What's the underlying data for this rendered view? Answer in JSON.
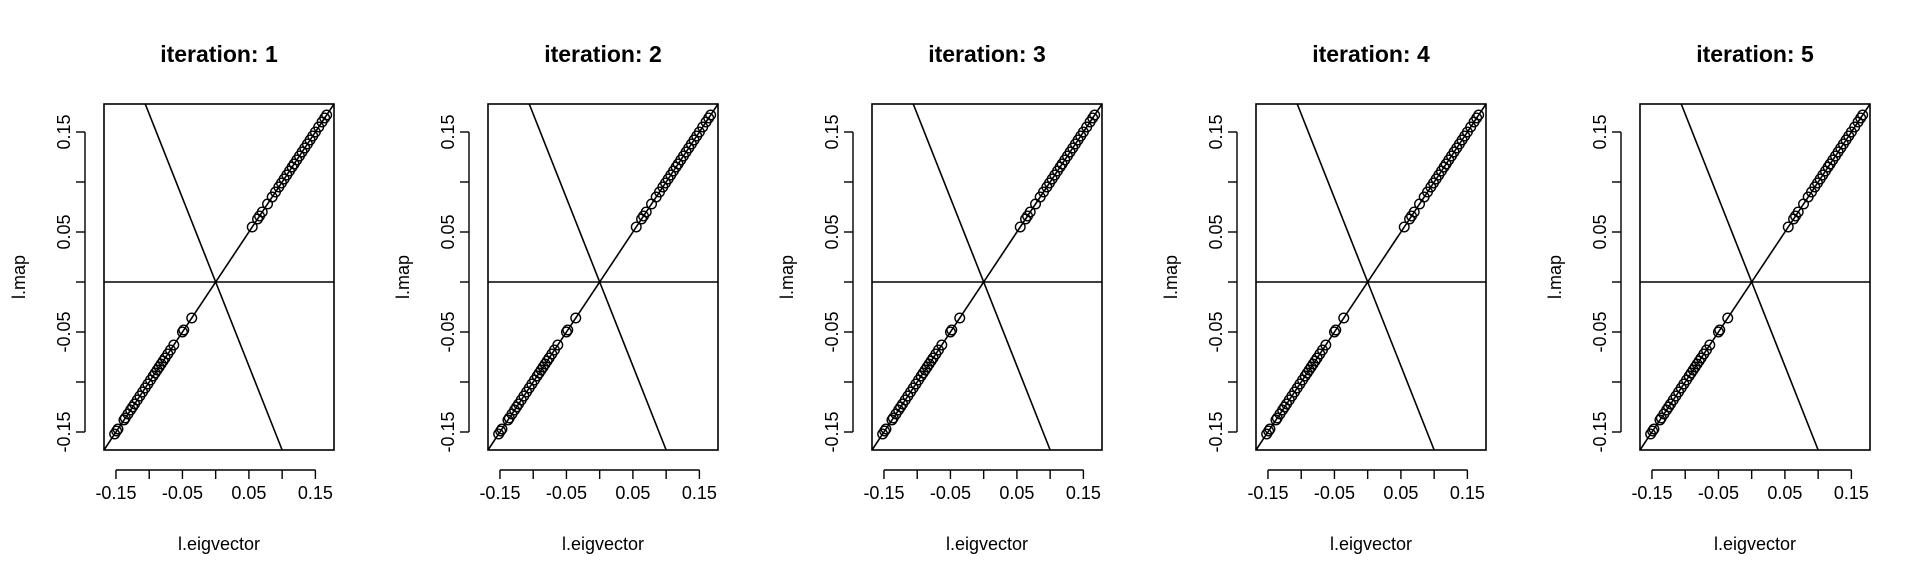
{
  "chart_data": [
    {
      "type": "scatter",
      "title": "iteration: 1",
      "xlabel": "l.eigvector",
      "ylabel": "l.map",
      "xlim": [
        -0.168,
        0.178
      ],
      "ylim": [
        -0.168,
        0.178
      ],
      "x_ticks": [
        -0.15,
        -0.1,
        -0.05,
        0,
        0.05,
        0.1,
        0.15
      ],
      "x_tick_labels": [
        "-0.15",
        "-0.05",
        "0.05",
        "0.15"
      ],
      "y_ticks": [
        -0.15,
        -0.1,
        -0.05,
        0,
        0.05,
        0.1,
        0.15
      ],
      "y_tick_labels": [
        "-0.15",
        "-0.05",
        "0.05",
        "0.15"
      ],
      "grid": false,
      "reference_lines": [
        {
          "kind": "abline",
          "intercept": 0,
          "slope": 1
        },
        {
          "kind": "abline",
          "intercept": 0,
          "slope": -1.68
        },
        {
          "kind": "hline",
          "y": 0
        }
      ],
      "points": {
        "x": [
          -0.152,
          -0.149,
          -0.147,
          -0.138,
          -0.136,
          -0.132,
          -0.128,
          -0.125,
          -0.122,
          -0.118,
          -0.114,
          -0.11,
          -0.106,
          -0.102,
          -0.098,
          -0.094,
          -0.091,
          -0.088,
          -0.085,
          -0.082,
          -0.079,
          -0.076,
          -0.072,
          -0.068,
          -0.063,
          -0.05,
          -0.048,
          -0.036,
          0.055,
          0.063,
          0.066,
          0.07,
          0.078,
          0.085,
          0.09,
          0.095,
          0.099,
          0.103,
          0.107,
          0.111,
          0.115,
          0.118,
          0.122,
          0.126,
          0.13,
          0.134,
          0.138,
          0.142,
          0.146,
          0.15,
          0.155,
          0.16,
          0.164,
          0.167
        ],
        "y": [
          -0.152,
          -0.149,
          -0.147,
          -0.138,
          -0.136,
          -0.132,
          -0.128,
          -0.125,
          -0.122,
          -0.118,
          -0.114,
          -0.11,
          -0.106,
          -0.102,
          -0.098,
          -0.094,
          -0.091,
          -0.088,
          -0.085,
          -0.082,
          -0.079,
          -0.076,
          -0.072,
          -0.068,
          -0.063,
          -0.05,
          -0.048,
          -0.036,
          0.055,
          0.063,
          0.066,
          0.07,
          0.078,
          0.085,
          0.09,
          0.095,
          0.099,
          0.103,
          0.107,
          0.111,
          0.115,
          0.118,
          0.122,
          0.126,
          0.13,
          0.134,
          0.138,
          0.142,
          0.146,
          0.15,
          0.155,
          0.16,
          0.164,
          0.167
        ]
      }
    },
    {
      "type": "scatter",
      "title": "iteration: 2",
      "xlabel": "l.eigvector",
      "ylabel": "l.map",
      "xlim": [
        -0.168,
        0.178
      ],
      "ylim": [
        -0.168,
        0.178
      ],
      "x_ticks": [
        -0.15,
        -0.1,
        -0.05,
        0,
        0.05,
        0.1,
        0.15
      ],
      "x_tick_labels": [
        "-0.15",
        "-0.05",
        "0.05",
        "0.15"
      ],
      "y_ticks": [
        -0.15,
        -0.1,
        -0.05,
        0,
        0.05,
        0.1,
        0.15
      ],
      "y_tick_labels": [
        "-0.15",
        "-0.05",
        "0.05",
        "0.15"
      ],
      "grid": false,
      "reference_lines": [
        {
          "kind": "abline",
          "intercept": 0,
          "slope": 1
        },
        {
          "kind": "abline",
          "intercept": 0,
          "slope": -1.68
        },
        {
          "kind": "hline",
          "y": 0
        }
      ],
      "points": {
        "x": [
          -0.152,
          -0.149,
          -0.147,
          -0.138,
          -0.136,
          -0.132,
          -0.128,
          -0.125,
          -0.122,
          -0.118,
          -0.114,
          -0.11,
          -0.106,
          -0.102,
          -0.098,
          -0.094,
          -0.091,
          -0.088,
          -0.085,
          -0.082,
          -0.079,
          -0.076,
          -0.072,
          -0.068,
          -0.063,
          -0.05,
          -0.048,
          -0.036,
          0.055,
          0.063,
          0.066,
          0.07,
          0.078,
          0.085,
          0.09,
          0.095,
          0.099,
          0.103,
          0.107,
          0.111,
          0.115,
          0.118,
          0.122,
          0.126,
          0.13,
          0.134,
          0.138,
          0.142,
          0.146,
          0.15,
          0.155,
          0.16,
          0.164,
          0.167
        ],
        "y": [
          -0.152,
          -0.149,
          -0.147,
          -0.138,
          -0.136,
          -0.132,
          -0.128,
          -0.125,
          -0.122,
          -0.118,
          -0.114,
          -0.11,
          -0.106,
          -0.102,
          -0.098,
          -0.094,
          -0.091,
          -0.088,
          -0.085,
          -0.082,
          -0.079,
          -0.076,
          -0.072,
          -0.068,
          -0.063,
          -0.05,
          -0.048,
          -0.036,
          0.055,
          0.063,
          0.066,
          0.07,
          0.078,
          0.085,
          0.09,
          0.095,
          0.099,
          0.103,
          0.107,
          0.111,
          0.115,
          0.118,
          0.122,
          0.126,
          0.13,
          0.134,
          0.138,
          0.142,
          0.146,
          0.15,
          0.155,
          0.16,
          0.164,
          0.167
        ]
      }
    },
    {
      "type": "scatter",
      "title": "iteration: 3",
      "xlabel": "l.eigvector",
      "ylabel": "l.map",
      "xlim": [
        -0.168,
        0.178
      ],
      "ylim": [
        -0.168,
        0.178
      ],
      "x_ticks": [
        -0.15,
        -0.1,
        -0.05,
        0,
        0.05,
        0.1,
        0.15
      ],
      "x_tick_labels": [
        "-0.15",
        "-0.05",
        "0.05",
        "0.15"
      ],
      "y_ticks": [
        -0.15,
        -0.1,
        -0.05,
        0,
        0.05,
        0.1,
        0.15
      ],
      "y_tick_labels": [
        "-0.15",
        "-0.05",
        "0.05",
        "0.15"
      ],
      "grid": false,
      "reference_lines": [
        {
          "kind": "abline",
          "intercept": 0,
          "slope": 1
        },
        {
          "kind": "abline",
          "intercept": 0,
          "slope": -1.68
        },
        {
          "kind": "hline",
          "y": 0
        }
      ],
      "points": {
        "x": [
          -0.152,
          -0.149,
          -0.147,
          -0.138,
          -0.136,
          -0.132,
          -0.128,
          -0.125,
          -0.122,
          -0.118,
          -0.114,
          -0.11,
          -0.106,
          -0.102,
          -0.098,
          -0.094,
          -0.091,
          -0.088,
          -0.085,
          -0.082,
          -0.079,
          -0.076,
          -0.072,
          -0.068,
          -0.063,
          -0.05,
          -0.048,
          -0.036,
          0.055,
          0.063,
          0.066,
          0.07,
          0.078,
          0.085,
          0.09,
          0.095,
          0.099,
          0.103,
          0.107,
          0.111,
          0.115,
          0.118,
          0.122,
          0.126,
          0.13,
          0.134,
          0.138,
          0.142,
          0.146,
          0.15,
          0.155,
          0.16,
          0.164,
          0.167
        ],
        "y": [
          -0.152,
          -0.149,
          -0.147,
          -0.138,
          -0.136,
          -0.132,
          -0.128,
          -0.125,
          -0.122,
          -0.118,
          -0.114,
          -0.11,
          -0.106,
          -0.102,
          -0.098,
          -0.094,
          -0.091,
          -0.088,
          -0.085,
          -0.082,
          -0.079,
          -0.076,
          -0.072,
          -0.068,
          -0.063,
          -0.05,
          -0.048,
          -0.036,
          0.055,
          0.063,
          0.066,
          0.07,
          0.078,
          0.085,
          0.09,
          0.095,
          0.099,
          0.103,
          0.107,
          0.111,
          0.115,
          0.118,
          0.122,
          0.126,
          0.13,
          0.134,
          0.138,
          0.142,
          0.146,
          0.15,
          0.155,
          0.16,
          0.164,
          0.167
        ]
      }
    },
    {
      "type": "scatter",
      "title": "iteration: 4",
      "xlabel": "l.eigvector",
      "ylabel": "l.map",
      "xlim": [
        -0.168,
        0.178
      ],
      "ylim": [
        -0.168,
        0.178
      ],
      "x_ticks": [
        -0.15,
        -0.1,
        -0.05,
        0,
        0.05,
        0.1,
        0.15
      ],
      "x_tick_labels": [
        "-0.15",
        "-0.05",
        "0.05",
        "0.15"
      ],
      "y_ticks": [
        -0.15,
        -0.1,
        -0.05,
        0,
        0.05,
        0.1,
        0.15
      ],
      "y_tick_labels": [
        "-0.15",
        "-0.05",
        "0.05",
        "0.15"
      ],
      "grid": false,
      "reference_lines": [
        {
          "kind": "abline",
          "intercept": 0,
          "slope": 1
        },
        {
          "kind": "abline",
          "intercept": 0,
          "slope": -1.68
        },
        {
          "kind": "hline",
          "y": 0
        }
      ],
      "points": {
        "x": [
          -0.152,
          -0.149,
          -0.147,
          -0.138,
          -0.136,
          -0.132,
          -0.128,
          -0.125,
          -0.122,
          -0.118,
          -0.114,
          -0.11,
          -0.106,
          -0.102,
          -0.098,
          -0.094,
          -0.091,
          -0.088,
          -0.085,
          -0.082,
          -0.079,
          -0.076,
          -0.072,
          -0.068,
          -0.063,
          -0.05,
          -0.048,
          -0.036,
          0.055,
          0.063,
          0.066,
          0.07,
          0.078,
          0.085,
          0.09,
          0.095,
          0.099,
          0.103,
          0.107,
          0.111,
          0.115,
          0.118,
          0.122,
          0.126,
          0.13,
          0.134,
          0.138,
          0.142,
          0.146,
          0.15,
          0.155,
          0.16,
          0.164,
          0.167
        ],
        "y": [
          -0.152,
          -0.149,
          -0.147,
          -0.138,
          -0.136,
          -0.132,
          -0.128,
          -0.125,
          -0.122,
          -0.118,
          -0.114,
          -0.11,
          -0.106,
          -0.102,
          -0.098,
          -0.094,
          -0.091,
          -0.088,
          -0.085,
          -0.082,
          -0.079,
          -0.076,
          -0.072,
          -0.068,
          -0.063,
          -0.05,
          -0.048,
          -0.036,
          0.055,
          0.063,
          0.066,
          0.07,
          0.078,
          0.085,
          0.09,
          0.095,
          0.099,
          0.103,
          0.107,
          0.111,
          0.115,
          0.118,
          0.122,
          0.126,
          0.13,
          0.134,
          0.138,
          0.142,
          0.146,
          0.15,
          0.155,
          0.16,
          0.164,
          0.167
        ]
      }
    },
    {
      "type": "scatter",
      "title": "iteration: 5",
      "xlabel": "l.eigvector",
      "ylabel": "l.map",
      "xlim": [
        -0.168,
        0.178
      ],
      "ylim": [
        -0.168,
        0.178
      ],
      "x_ticks": [
        -0.15,
        -0.1,
        -0.05,
        0,
        0.05,
        0.1,
        0.15
      ],
      "x_tick_labels": [
        "-0.15",
        "-0.05",
        "0.05",
        "0.15"
      ],
      "y_ticks": [
        -0.15,
        -0.1,
        -0.05,
        0,
        0.05,
        0.1,
        0.15
      ],
      "y_tick_labels": [
        "-0.15",
        "-0.05",
        "0.05",
        "0.15"
      ],
      "grid": false,
      "reference_lines": [
        {
          "kind": "abline",
          "intercept": 0,
          "slope": 1
        },
        {
          "kind": "abline",
          "intercept": 0,
          "slope": -1.68
        },
        {
          "kind": "hline",
          "y": 0
        }
      ],
      "points": {
        "x": [
          -0.152,
          -0.149,
          -0.147,
          -0.138,
          -0.136,
          -0.132,
          -0.128,
          -0.125,
          -0.122,
          -0.118,
          -0.114,
          -0.11,
          -0.106,
          -0.102,
          -0.098,
          -0.094,
          -0.091,
          -0.088,
          -0.085,
          -0.082,
          -0.079,
          -0.076,
          -0.072,
          -0.068,
          -0.063,
          -0.05,
          -0.048,
          -0.036,
          0.055,
          0.063,
          0.066,
          0.07,
          0.078,
          0.085,
          0.09,
          0.095,
          0.099,
          0.103,
          0.107,
          0.111,
          0.115,
          0.118,
          0.122,
          0.126,
          0.13,
          0.134,
          0.138,
          0.142,
          0.146,
          0.15,
          0.155,
          0.16,
          0.164,
          0.167
        ],
        "y": [
          -0.152,
          -0.149,
          -0.147,
          -0.138,
          -0.136,
          -0.132,
          -0.128,
          -0.125,
          -0.122,
          -0.118,
          -0.114,
          -0.11,
          -0.106,
          -0.102,
          -0.098,
          -0.094,
          -0.091,
          -0.088,
          -0.085,
          -0.082,
          -0.079,
          -0.076,
          -0.072,
          -0.068,
          -0.063,
          -0.05,
          -0.048,
          -0.036,
          0.055,
          0.063,
          0.066,
          0.07,
          0.078,
          0.085,
          0.09,
          0.095,
          0.099,
          0.103,
          0.107,
          0.111,
          0.115,
          0.118,
          0.122,
          0.126,
          0.13,
          0.134,
          0.138,
          0.142,
          0.146,
          0.15,
          0.155,
          0.16,
          0.164,
          0.167
        ]
      }
    }
  ]
}
